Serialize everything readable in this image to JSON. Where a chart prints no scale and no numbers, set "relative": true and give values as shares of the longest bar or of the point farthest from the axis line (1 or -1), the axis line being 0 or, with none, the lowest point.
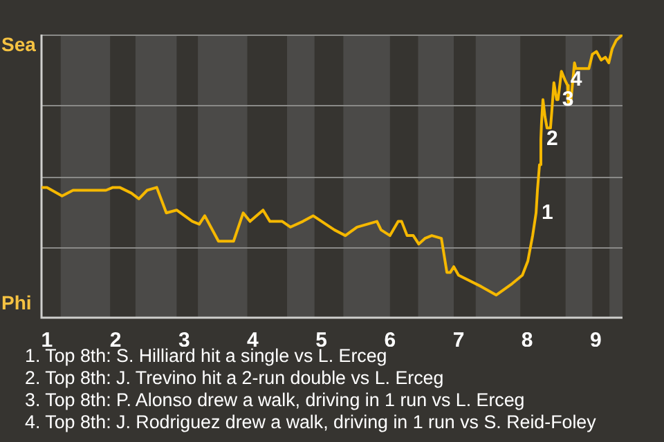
{
  "chart_data": {
    "type": "line",
    "color": "#f5b800",
    "relative": true,
    "x": [
      0.92,
      1.0,
      1.22,
      1.38,
      1.46,
      1.52,
      1.86,
      1.96,
      2.06,
      2.23,
      2.34,
      2.46,
      2.6,
      2.74,
      2.89,
      3.12,
      3.22,
      3.3,
      3.5,
      3.72,
      3.86,
      3.96,
      4.15,
      4.25,
      4.43,
      4.55,
      4.73,
      4.88,
      5.19,
      5.35,
      5.52,
      5.81,
      5.87,
      6.0,
      6.12,
      6.17,
      6.25,
      6.34,
      6.42,
      6.51,
      6.61,
      6.75,
      6.83,
      6.88,
      6.93,
      7.0,
      7.33,
      7.55,
      7.78,
      7.93,
      8.01,
      8.08,
      8.13,
      8.15,
      8.18,
      8.2,
      8.21,
      8.23,
      8.26,
      8.29,
      8.34,
      8.36,
      8.39,
      8.43,
      8.45,
      8.5,
      8.55,
      8.59,
      8.6,
      8.64,
      8.69,
      8.71,
      8.76,
      8.9,
      8.95,
      9.01,
      9.08,
      9.14,
      9.19,
      9.24,
      9.3,
      9.39
    ],
    "values": [
      0.46,
      0.46,
      0.43,
      0.45,
      0.45,
      0.45,
      0.45,
      0.46,
      0.46,
      0.44,
      0.42,
      0.45,
      0.46,
      0.37,
      0.38,
      0.34,
      0.33,
      0.36,
      0.27,
      0.27,
      0.37,
      0.34,
      0.38,
      0.34,
      0.34,
      0.32,
      0.34,
      0.36,
      0.31,
      0.29,
      0.32,
      0.34,
      0.31,
      0.29,
      0.34,
      0.34,
      0.29,
      0.29,
      0.26,
      0.28,
      0.29,
      0.28,
      0.16,
      0.16,
      0.18,
      0.15,
      0.11,
      0.08,
      0.12,
      0.15,
      0.2,
      0.29,
      0.37,
      0.45,
      0.54,
      0.63,
      0.69,
      0.77,
      0.71,
      0.67,
      0.67,
      0.73,
      0.83,
      0.77,
      0.77,
      0.87,
      0.84,
      0.82,
      0.76,
      0.77,
      0.9,
      0.88,
      0.88,
      0.88,
      0.93,
      0.94,
      0.91,
      0.92,
      0.9,
      0.95,
      0.98,
      1
    ],
    "xlim": [
      0.92,
      9.39
    ],
    "xticks": [
      1,
      2,
      3,
      4,
      5,
      6,
      7,
      8,
      9
    ],
    "legend": false,
    "marker": "none",
    "line_style": "solid",
    "ref_lines": [
      {
        "axis": "y",
        "value": 0.25,
        "color": "#8a8a88"
      },
      {
        "axis": "y",
        "value": 0.5,
        "color": "#8a8a88"
      },
      {
        "axis": "y",
        "value": 0.75,
        "color": "#8a8a88"
      },
      {
        "axis": "y",
        "value": 1,
        "color": "#8a8a88"
      }
    ],
    "bands": [
      {
        "axis": "x",
        "from": 1.2,
        "to": 1.92,
        "color": "#4b4a48"
      },
      {
        "axis": "x",
        "from": 2.29,
        "to": 2.89,
        "color": "#4b4a48"
      },
      {
        "axis": "x",
        "from": 3.2,
        "to": 3.92,
        "color": "#4b4a48"
      },
      {
        "axis": "x",
        "from": 4.5,
        "to": 4.9,
        "color": "#4b4a48"
      },
      {
        "axis": "x",
        "from": 5.32,
        "to": 6.0,
        "color": "#4b4a48"
      },
      {
        "axis": "x",
        "from": 6.41,
        "to": 6.93,
        "color": "#4b4a48"
      },
      {
        "axis": "x",
        "from": 7.25,
        "to": 7.9,
        "color": "#4b4a48"
      },
      {
        "axis": "x",
        "from": 8.56,
        "to": 8.95,
        "color": "#4b4a48"
      },
      {
        "axis": "x",
        "from": 9.2,
        "to": 9.39,
        "color": "#4b4a48"
      }
    ],
    "annotations": [
      "Sea",
      "Phi",
      {
        "text": "1",
        "x": 8.13,
        "y": 0.37
      },
      {
        "text": "2",
        "x": 8.2,
        "y": 0.63
      },
      {
        "text": "3",
        "x": 8.43,
        "y": 0.77
      },
      {
        "text": "4",
        "x": 8.55,
        "y": 0.84
      },
      "1. Top 8th: S. Hilliard hit a single vs L. Erceg",
      "2. Top 8th: J. Trevino hit a 2-run double vs L. Erceg",
      "3. Top 8th: P. Alonso drew a walk, driving in 1 run vs L. Erceg",
      "4. Top 8th: J. Rodriguez drew a walk, driving in 1 run vs S. Reid-Foley"
    ]
  }
}
